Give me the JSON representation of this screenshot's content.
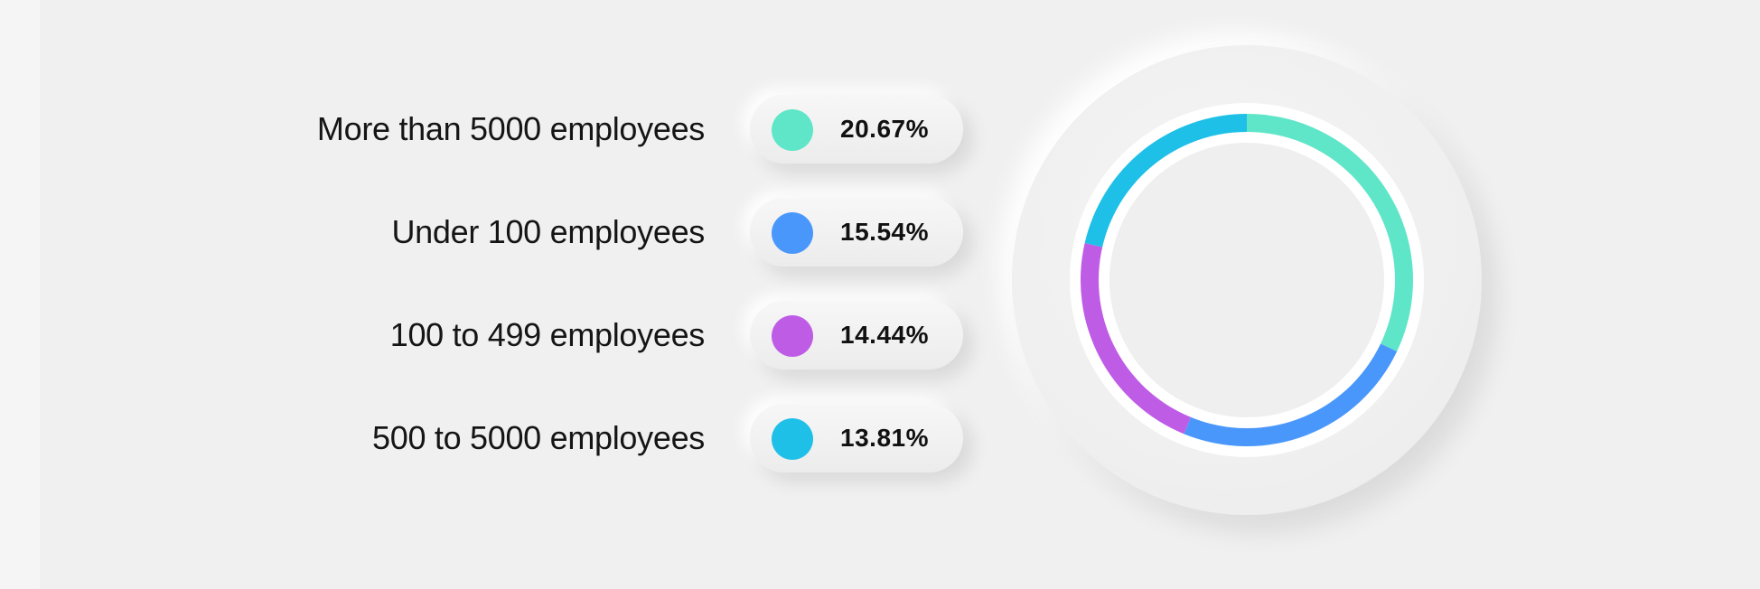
{
  "chart_data": {
    "type": "pie",
    "variant": "donut",
    "categories": [
      "More than 5000 employees",
      "Under 100 employees",
      "100 to 499 employees",
      "500 to 5000 employees"
    ],
    "values": [
      20.67,
      15.54,
      14.44,
      13.81
    ],
    "value_labels": [
      "20.67%",
      "15.54%",
      "14.44%",
      "13.81%"
    ],
    "colors": [
      "#5fe6c8",
      "#4a97fb",
      "#be5ce6",
      "#1ec0e8"
    ],
    "title": "",
    "legend_position": "left"
  }
}
